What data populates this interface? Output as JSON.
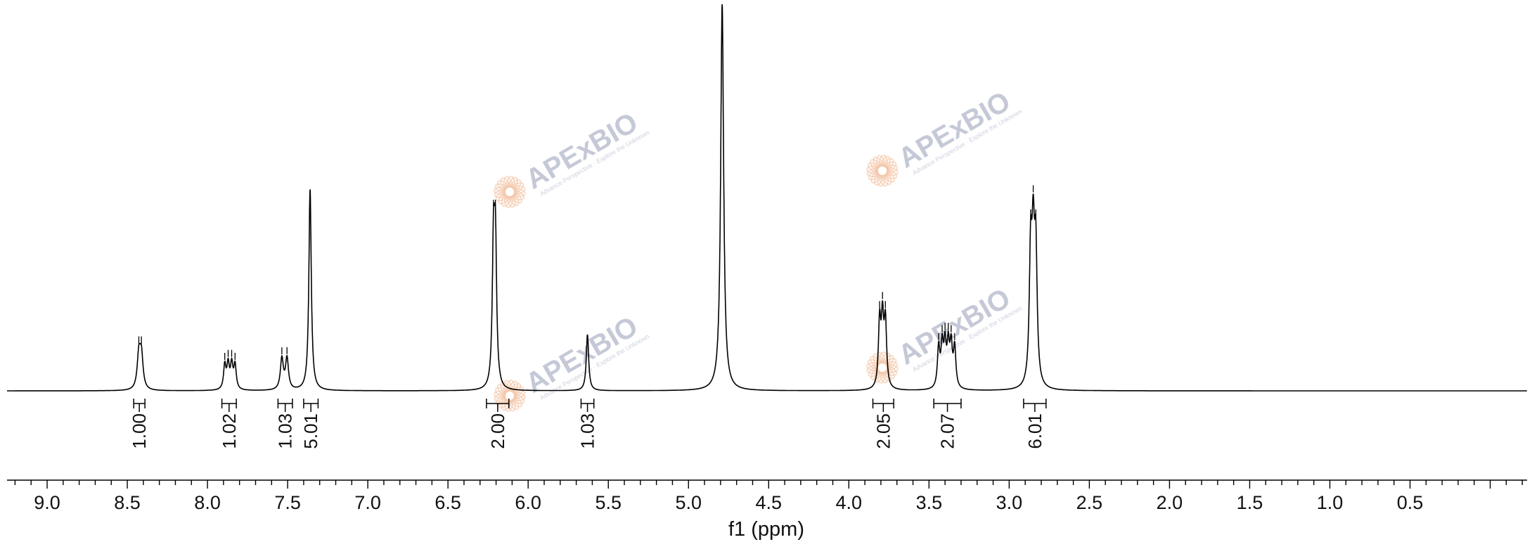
{
  "chart_data": {
    "type": "line",
    "title": "",
    "xlabel": "f1 (ppm)",
    "ylabel": "",
    "x_reversed": true,
    "xlim": [
      -0.23,
      9.25
    ],
    "ylim": [
      0,
      1
    ],
    "grid": false,
    "x_ticks": [
      "9.0",
      "8.5",
      "8.0",
      "7.5",
      "7.0",
      "6.5",
      "6.0",
      "5.5",
      "5.0",
      "4.5",
      "4.0",
      "3.5",
      "3.0",
      "2.5",
      "2.0",
      "1.5",
      "1.0",
      "0.5"
    ],
    "peaks": [
      {
        "ppm": 8.42,
        "height": 0.063,
        "width": 0.012,
        "lines": [
          -0.008,
          0.008
        ]
      },
      {
        "ppm": 7.86,
        "height": 0.045,
        "width": 0.009,
        "lines": [
          -0.032,
          -0.011,
          0.011,
          0.032
        ]
      },
      {
        "ppm": 7.52,
        "height": 0.058,
        "width": 0.011,
        "lines": [
          -0.016,
          0.016
        ]
      },
      {
        "ppm": 7.36,
        "height": 0.52,
        "width": 0.009,
        "lines": [
          0
        ]
      },
      {
        "ppm": 6.21,
        "height": 0.25,
        "width": 0.009,
        "lines": [
          -0.006,
          0.006
        ]
      },
      {
        "ppm": 5.63,
        "height": 0.145,
        "width": 0.009,
        "lines": [
          0
        ]
      },
      {
        "ppm": 4.79,
        "height": 1.0,
        "width": 0.011,
        "lines": [
          0
        ]
      },
      {
        "ppm": 3.79,
        "height": 0.12,
        "width": 0.009,
        "lines": [
          -0.018,
          0,
          0.018
        ]
      },
      {
        "ppm": 3.39,
        "height": 0.074,
        "width": 0.009,
        "lines": [
          -0.05,
          -0.028,
          -0.01,
          0.01,
          0.028,
          0.05
        ]
      },
      {
        "ppm": 2.85,
        "height": 0.235,
        "width": 0.01,
        "lines": [
          -0.016,
          0,
          0.016
        ]
      }
    ],
    "integrals": [
      {
        "label": "1.00",
        "from": 8.46,
        "to": 8.39
      },
      {
        "label": "1.02",
        "from": 7.91,
        "to": 7.82
      },
      {
        "label": "1.03",
        "from": 7.56,
        "to": 7.47
      },
      {
        "label": "5.01",
        "from": 7.4,
        "to": 7.31
      },
      {
        "label": "2.00",
        "from": 6.26,
        "to": 6.12
      },
      {
        "label": "1.03",
        "from": 5.67,
        "to": 5.59
      },
      {
        "label": "2.05",
        "from": 3.85,
        "to": 3.72
      },
      {
        "label": "2.07",
        "from": 3.47,
        "to": 3.3
      },
      {
        "label": "6.01",
        "from": 2.91,
        "to": 2.77
      }
    ]
  },
  "watermark": {
    "brand": "APExBIO",
    "tagline": "Advance Perspective · Explore the Unknown",
    "color": "#7f8aa8",
    "logo_color": "#f3c7a8"
  }
}
